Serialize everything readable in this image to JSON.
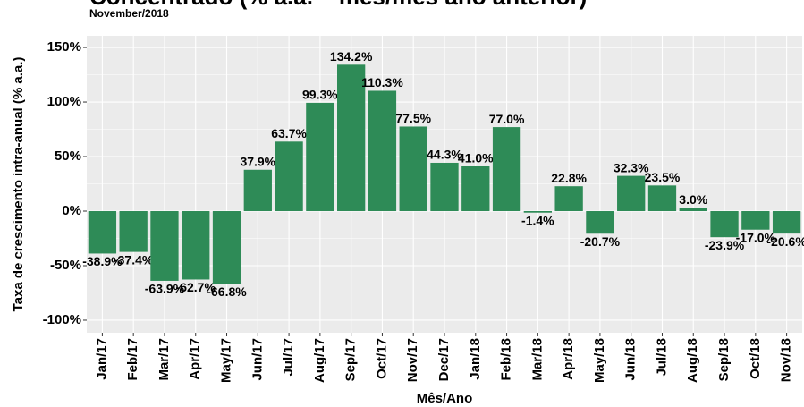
{
  "chart_data": {
    "type": "bar",
    "title": "Concentrado (% a.a. – mês/mês ano anterior)",
    "subtitle": "November/2018",
    "x_label": "Mês/Ano",
    "y_label": "Taxa de crescimento intra-anual (% a.a.)",
    "categories": [
      "Jan/17",
      "Feb/17",
      "Mar/17",
      "Apr/17",
      "May/17",
      "Jun/17",
      "Jul/17",
      "Aug/17",
      "Sep/17",
      "Oct/17",
      "Nov/17",
      "Dec/17",
      "Jan/18",
      "Feb/18",
      "Mar/18",
      "Apr/18",
      "May/18",
      "Jun/18",
      "Jul/18",
      "Aug/18",
      "Sep/18",
      "Oct/18",
      "Nov/18"
    ],
    "values": [
      -38.9,
      -37.4,
      -63.9,
      -62.7,
      -66.8,
      37.9,
      63.7,
      99.3,
      134.2,
      110.3,
      77.5,
      44.3,
      41.0,
      77.0,
      -1.4,
      22.8,
      -20.7,
      32.3,
      23.5,
      3.0,
      -23.9,
      -17.0,
      -20.6
    ],
    "value_labels": [
      "-38.9%",
      "-37.4%",
      "-63.9%",
      "-62.7%",
      "-66.8%",
      "37.9%",
      "63.7%",
      "99.3%",
      "134.2%",
      "110.3%",
      "77.5%",
      "44.3%",
      "41.0%",
      "77.0%",
      "-1.4%",
      "22.8%",
      "-20.7%",
      "32.3%",
      "23.5%",
      "3.0%",
      "-23.9%",
      "-17.0%",
      "-20.6%"
    ],
    "color": "#2e8b57",
    "ylim": [
      -111.5,
      160.7
    ],
    "yticks": [
      {
        "value": -100,
        "label": "-100%"
      },
      {
        "value": -50,
        "label": "-50%"
      },
      {
        "value": 0,
        "label": "0%"
      },
      {
        "value": 50,
        "label": "50%"
      },
      {
        "value": 100,
        "label": "100%"
      },
      {
        "value": 150,
        "label": "150%"
      }
    ],
    "grid": true
  }
}
